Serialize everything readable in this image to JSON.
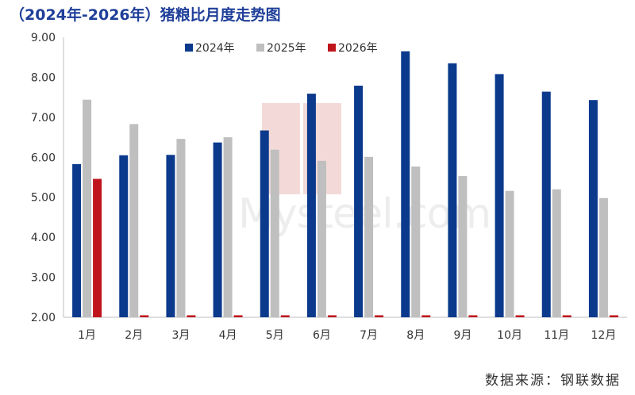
{
  "title": "（2024年-2026年）猪粮比月度走势图",
  "source": "数据来源：钢联数据",
  "watermark": "Mysteel.com",
  "colors": {
    "2024年": "#0b3a8d",
    "2025年": "#bfbfbf",
    "2026年": "#c0141c"
  },
  "chart_data": {
    "type": "bar",
    "title": "（2024年-2026年）猪粮比月度走势图",
    "xlabel": "",
    "ylabel": "",
    "categories": [
      "1月",
      "2月",
      "3月",
      "4月",
      "5月",
      "6月",
      "7月",
      "8月",
      "9月",
      "10月",
      "11月",
      "12月"
    ],
    "ylim": [
      2.0,
      9.0
    ],
    "yticks": [
      "2.00",
      "3.00",
      "4.00",
      "5.00",
      "6.00",
      "7.00",
      "8.00",
      "9.00"
    ],
    "grid": false,
    "legend": "top-center",
    "series": [
      {
        "name": "2024年",
        "values": [
          5.83,
          6.05,
          6.06,
          6.37,
          6.67,
          7.59,
          7.79,
          8.65,
          8.35,
          8.08,
          7.64,
          7.43
        ]
      },
      {
        "name": "2025年",
        "values": [
          7.44,
          6.83,
          6.46,
          6.5,
          6.19,
          5.91,
          6.01,
          5.77,
          5.53,
          5.16,
          5.2,
          4.98
        ]
      },
      {
        "name": "2026年",
        "values": [
          5.46,
          2.05,
          2.05,
          2.05,
          2.05,
          2.05,
          2.05,
          2.05,
          2.05,
          2.05,
          2.05,
          2.05
        ]
      }
    ]
  }
}
